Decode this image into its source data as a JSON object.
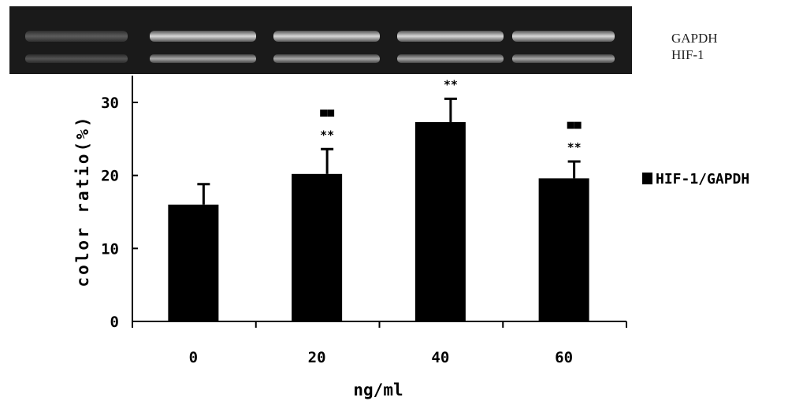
{
  "gel": {
    "labels": [
      "GAPDH",
      "HIF-1"
    ]
  },
  "chart_data": {
    "type": "bar",
    "categories": [
      "0",
      "20",
      "40",
      "60"
    ],
    "series": [
      {
        "name": "HIF-1/GAPDH",
        "values": [
          16,
          20.2,
          27.3,
          19.6
        ],
        "errors": [
          2.8,
          3.4,
          3.2,
          2.3
        ]
      }
    ],
    "significance": [
      {
        "stars": "",
        "squares": ""
      },
      {
        "stars": "**",
        "squares": "■■"
      },
      {
        "stars": "**",
        "squares": ""
      },
      {
        "stars": "**",
        "squares": "■■"
      }
    ],
    "xlabel": "ng/ml",
    "ylabel": "color ratio(%)",
    "ylim": [
      0,
      30
    ],
    "yticks": [
      0,
      10,
      20,
      30
    ],
    "legend": {
      "position": "right"
    },
    "colors": {
      "bar": "#000000",
      "gel_background": "#1a1a1a",
      "gel_band": "#d8d8d8"
    }
  }
}
